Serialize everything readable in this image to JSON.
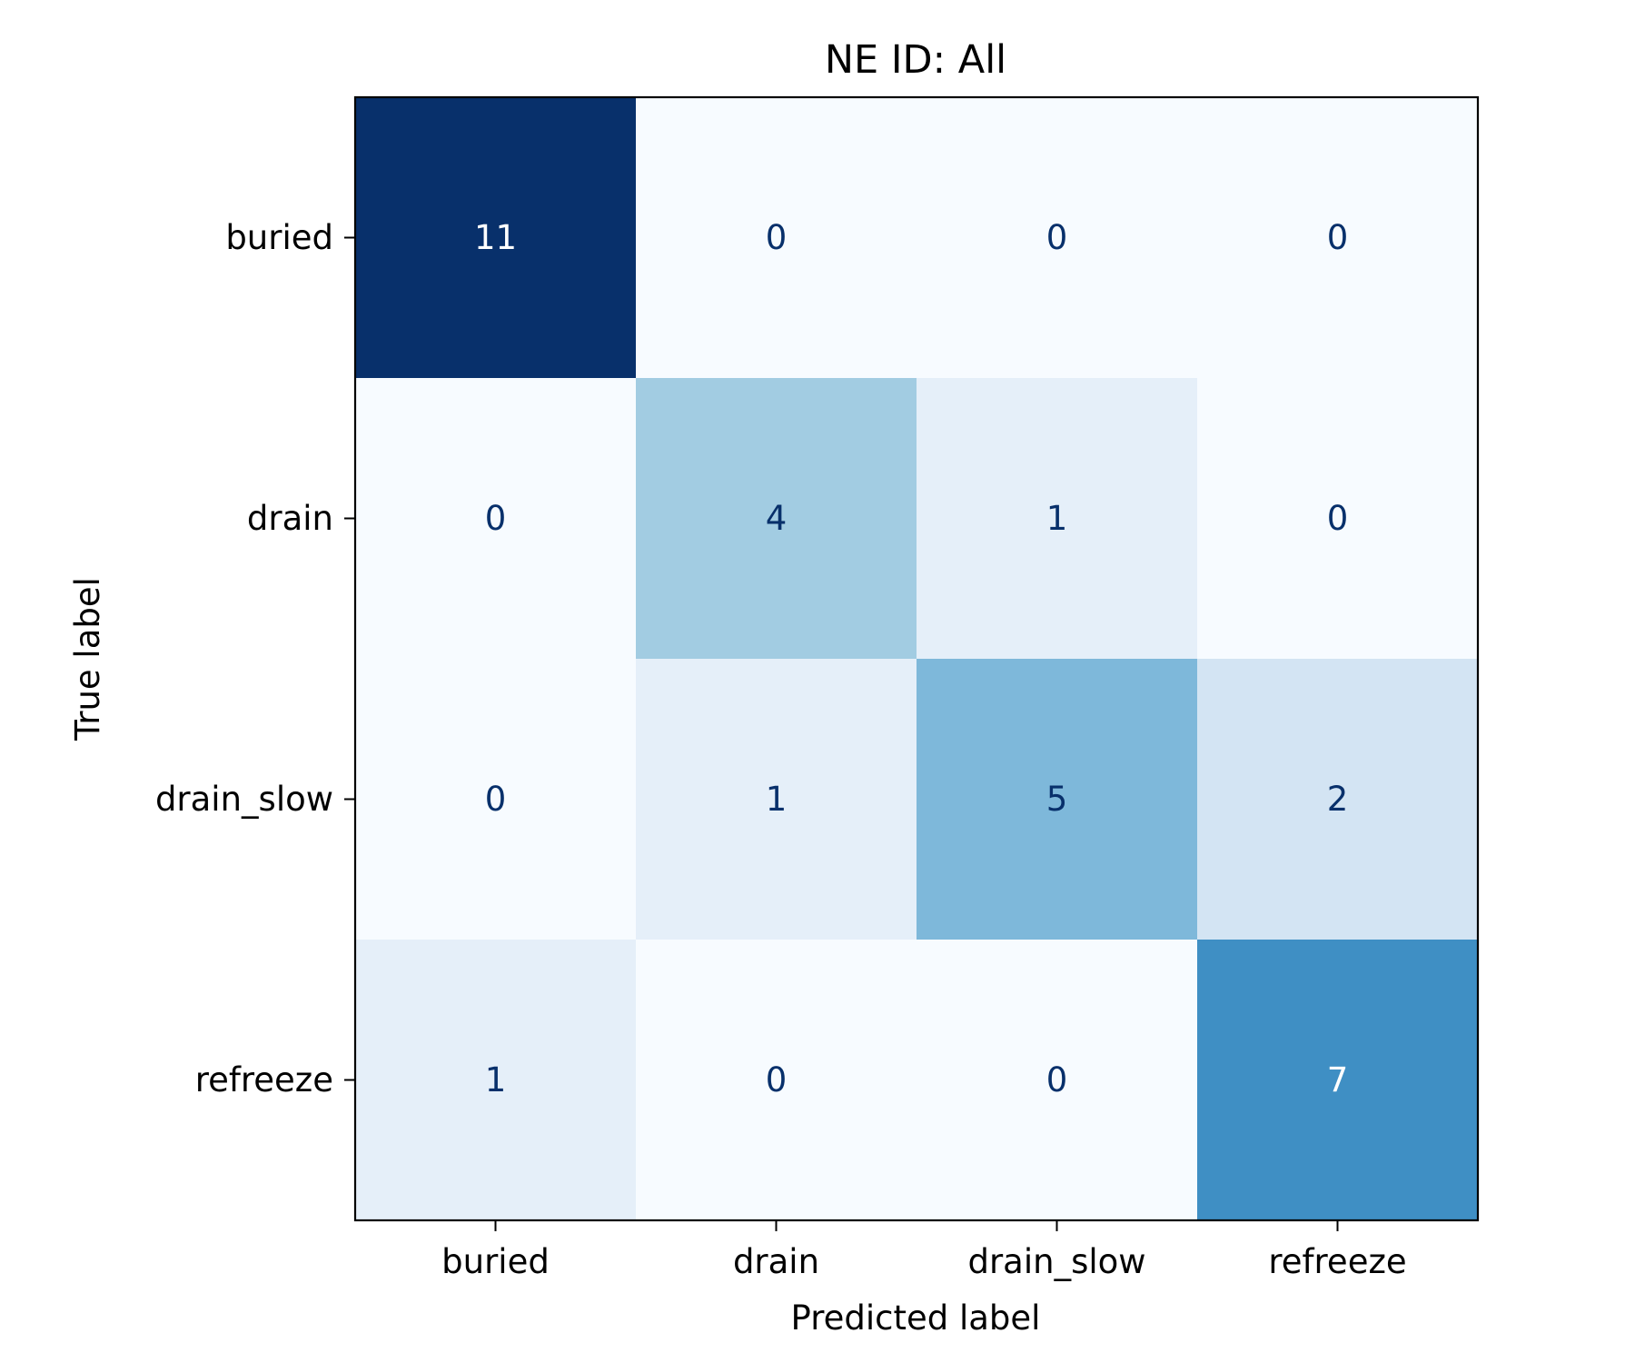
{
  "chart_data": {
    "type": "heatmap",
    "title": "NE ID: All",
    "xlabel": "Predicted label",
    "ylabel": "True label",
    "x_categories": [
      "buried",
      "drain",
      "drain_slow",
      "refreeze"
    ],
    "y_categories": [
      "buried",
      "drain",
      "drain_slow",
      "refreeze"
    ],
    "values": [
      [
        11,
        0,
        0,
        0
      ],
      [
        0,
        4,
        1,
        0
      ],
      [
        0,
        1,
        5,
        2
      ],
      [
        1,
        0,
        0,
        7
      ]
    ],
    "vmin": 0,
    "vmax": 11,
    "colormap": "Blues",
    "colorbar": false,
    "grid": false
  }
}
